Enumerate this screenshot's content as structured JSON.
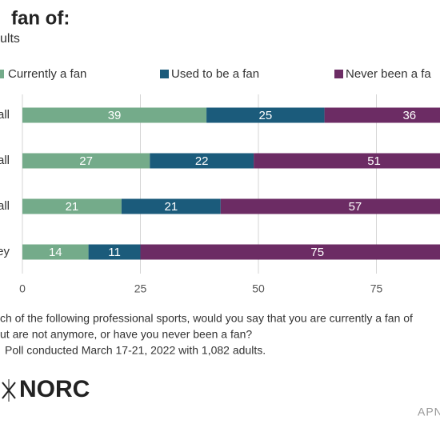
{
  "chart_data": {
    "type": "stacked-bar-horizontal",
    "title": "fan of:",
    "subtitle": "ults",
    "categories": [
      "all",
      "all",
      "all",
      "ey"
    ],
    "series": [
      {
        "name": "Currently a fan",
        "color": "#74ab8a",
        "values": [
          39,
          27,
          21,
          14
        ]
      },
      {
        "name": "Used to be a fan",
        "color": "#1b5b7b",
        "values": [
          25,
          22,
          21,
          11
        ]
      },
      {
        "name": "Never been a fa",
        "color": "#6c2c64",
        "values": [
          36,
          51,
          57,
          75
        ]
      }
    ],
    "xlim": [
      0,
      100
    ],
    "xticks": [
      0,
      25,
      50,
      75
    ],
    "grid": true,
    "notes": [
      "ch of the following professional sports, would you say that you are currently a fan of",
      "ut are not anymore, or have you never been a fan?",
      "Poll conducted March 17-21, 2022 with 1,082 adults."
    ],
    "logo": "NORC",
    "brand": "APN"
  }
}
